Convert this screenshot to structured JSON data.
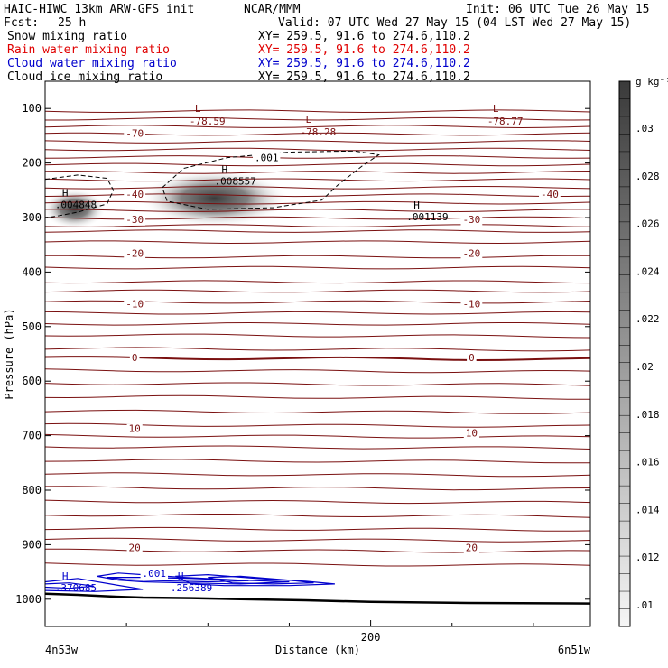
{
  "header": {
    "model": "HAIC-HIWC 13km ARW-GFS init",
    "org": "NCAR/MMM",
    "init": "Init: 06 UTC Tue 26 May 15",
    "fcst_label": "Fcst:",
    "fcst_value": "25 h",
    "valid": "Valid: 07 UTC Wed 27 May 15 (04 LST Wed 27 May 15)",
    "fields": [
      {
        "name": "Snow mixing ratio",
        "xy": "XY= 259.5, 91.6 to 274.6,110.2",
        "color": "#000000"
      },
      {
        "name": "Rain water mixing ratio",
        "xy": "XY= 259.5, 91.6 to 274.6,110.2",
        "color": "#e00000"
      },
      {
        "name": "Cloud water mixing ratio",
        "xy": "XY= 259.5, 91.6 to 274.6,110.2",
        "color": "#0000cc"
      },
      {
        "name": "Cloud ice mixing ratio",
        "xy": "XY= 259.5, 91.6 to 274.6,110.2",
        "color": "#000000"
      }
    ]
  },
  "chart_data": {
    "type": "contour",
    "xlabel": "Distance (km)",
    "ylabel": "Pressure (hPa)",
    "xlim": [
      0,
      335
    ],
    "ylim": [
      1050,
      50
    ],
    "x_ticks": [
      {
        "value": 200,
        "label": "200"
      }
    ],
    "x_end_labels": {
      "left": "4n53w",
      "right": "6n51w"
    },
    "y_ticks": [
      100,
      200,
      300,
      400,
      500,
      600,
      700,
      800,
      900,
      1000
    ],
    "colorbar": {
      "units": "g kg⁻¹",
      "ticks": [
        ".03",
        ".028",
        ".026",
        ".024",
        ".022",
        ".02",
        ".018",
        ".016",
        ".014",
        ".012",
        ".01"
      ],
      "min": 0.01,
      "max": 0.03
    },
    "temperature_contours": {
      "color": "#7a1010",
      "labels": [
        {
          "text": "-70",
          "x": 55,
          "p": 145
        },
        {
          "text": "-40",
          "x": 55,
          "p": 257
        },
        {
          "text": "-40",
          "x": 310,
          "p": 257
        },
        {
          "text": "-30",
          "x": 55,
          "p": 303
        },
        {
          "text": "-30",
          "x": 262,
          "p": 303
        },
        {
          "text": "-20",
          "x": 55,
          "p": 365
        },
        {
          "text": "-20",
          "x": 262,
          "p": 365
        },
        {
          "text": "-10",
          "x": 55,
          "p": 458
        },
        {
          "text": "-10",
          "x": 262,
          "p": 458
        },
        {
          "text": "0",
          "x": 55,
          "p": 557
        },
        {
          "text": "0",
          "x": 262,
          "p": 557
        },
        {
          "text": "10",
          "x": 55,
          "p": 687
        },
        {
          "text": "10",
          "x": 262,
          "p": 695
        },
        {
          "text": "20",
          "x": 55,
          "p": 905
        },
        {
          "text": "20",
          "x": 262,
          "p": 905
        }
      ],
      "minima": [
        {
          "mark": "L",
          "value": "-78.59",
          "x": 92,
          "p": 90
        },
        {
          "mark": "L",
          "value": "-78.28",
          "x": 160,
          "p": 110
        },
        {
          "mark": "L",
          "value": "-78.77",
          "x": 275,
          "p": 90
        }
      ]
    },
    "snow_maxima": [
      {
        "mark": "H",
        "value": ".004848",
        "x": 6,
        "p": 268
      },
      {
        "mark": "H",
        "value": ".008557",
        "x": 104,
        "p": 225
      },
      {
        "mark": "H",
        "value": ".001139",
        "x": 222,
        "p": 290
      }
    ],
    "ice_contour_label": ".001",
    "cloud_water": {
      "color": "#0000cc",
      "contour_label": ".001",
      "maxima": [
        {
          "mark": "H",
          "value": ".370685",
          "x": 6,
          "p": 967
        },
        {
          "mark": "H",
          "value": ".256389",
          "x": 77,
          "p": 967
        }
      ]
    }
  }
}
